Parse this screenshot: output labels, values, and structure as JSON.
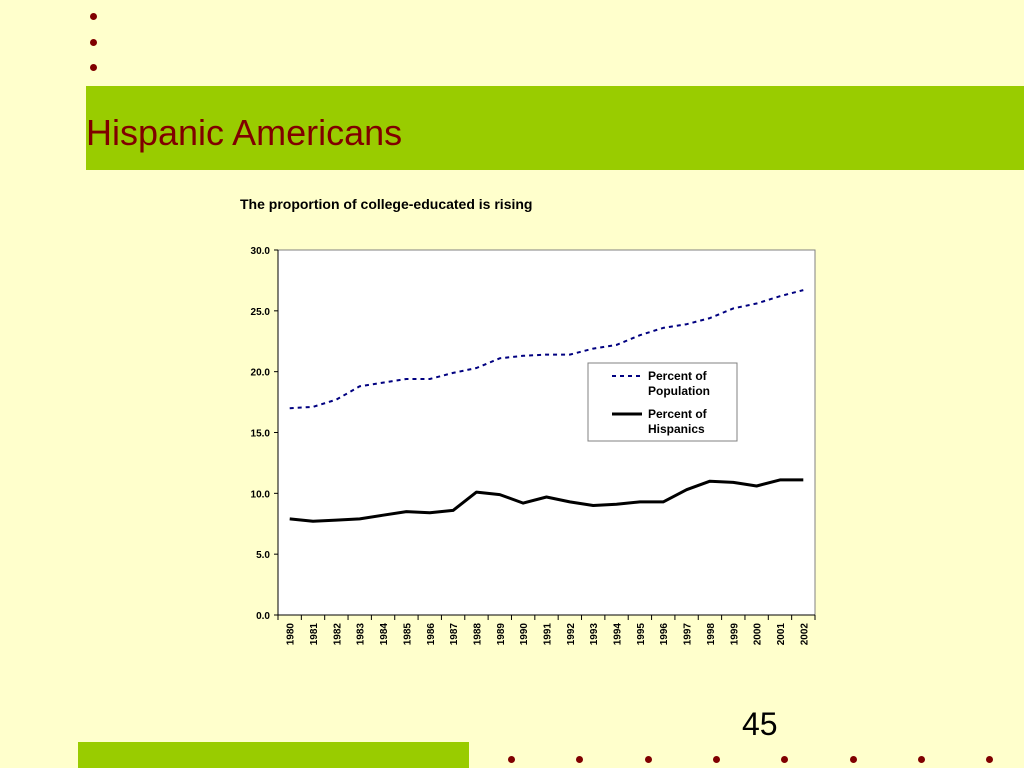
{
  "slide": {
    "title": "Hispanic Americans",
    "page_number": "45",
    "colors": {
      "background": "#ffffcc",
      "accent_bar": "#99cc00",
      "title_text": "#800000",
      "bullet": "#800000"
    }
  },
  "chart_data": {
    "type": "line",
    "title": "The proportion of college-educated is rising",
    "xlabel": "",
    "ylabel": "",
    "categories": [
      "1980",
      "1981",
      "1982",
      "1983",
      "1984",
      "1985",
      "1986",
      "1987",
      "1988",
      "1989",
      "1990",
      "1991",
      "1992",
      "1993",
      "1994",
      "1995",
      "1996",
      "1997",
      "1998",
      "1999",
      "2000",
      "2001",
      "2002"
    ],
    "series": [
      {
        "name": "Percent of Population",
        "style": "dashed",
        "color": "#000080",
        "values": [
          17.0,
          17.1,
          17.7,
          18.8,
          19.1,
          19.4,
          19.4,
          19.9,
          20.3,
          21.1,
          21.3,
          21.4,
          21.4,
          21.9,
          22.2,
          23.0,
          23.6,
          23.9,
          24.4,
          25.2,
          25.6,
          26.2,
          26.7
        ]
      },
      {
        "name": "Percent of Hispanics",
        "style": "solid",
        "color": "#000000",
        "values": [
          7.9,
          7.7,
          7.8,
          7.9,
          8.2,
          8.5,
          8.4,
          8.6,
          10.1,
          9.9,
          9.2,
          9.7,
          9.3,
          9.0,
          9.1,
          9.3,
          9.3,
          10.3,
          11.0,
          10.9,
          10.6,
          11.1,
          11.1
        ]
      }
    ],
    "ylim": [
      0,
      30
    ],
    "ytick_labels": [
      "0.0",
      "5.0",
      "10.0",
      "15.0",
      "20.0",
      "25.0",
      "30.0"
    ],
    "grid": true,
    "legend_position": "right"
  }
}
